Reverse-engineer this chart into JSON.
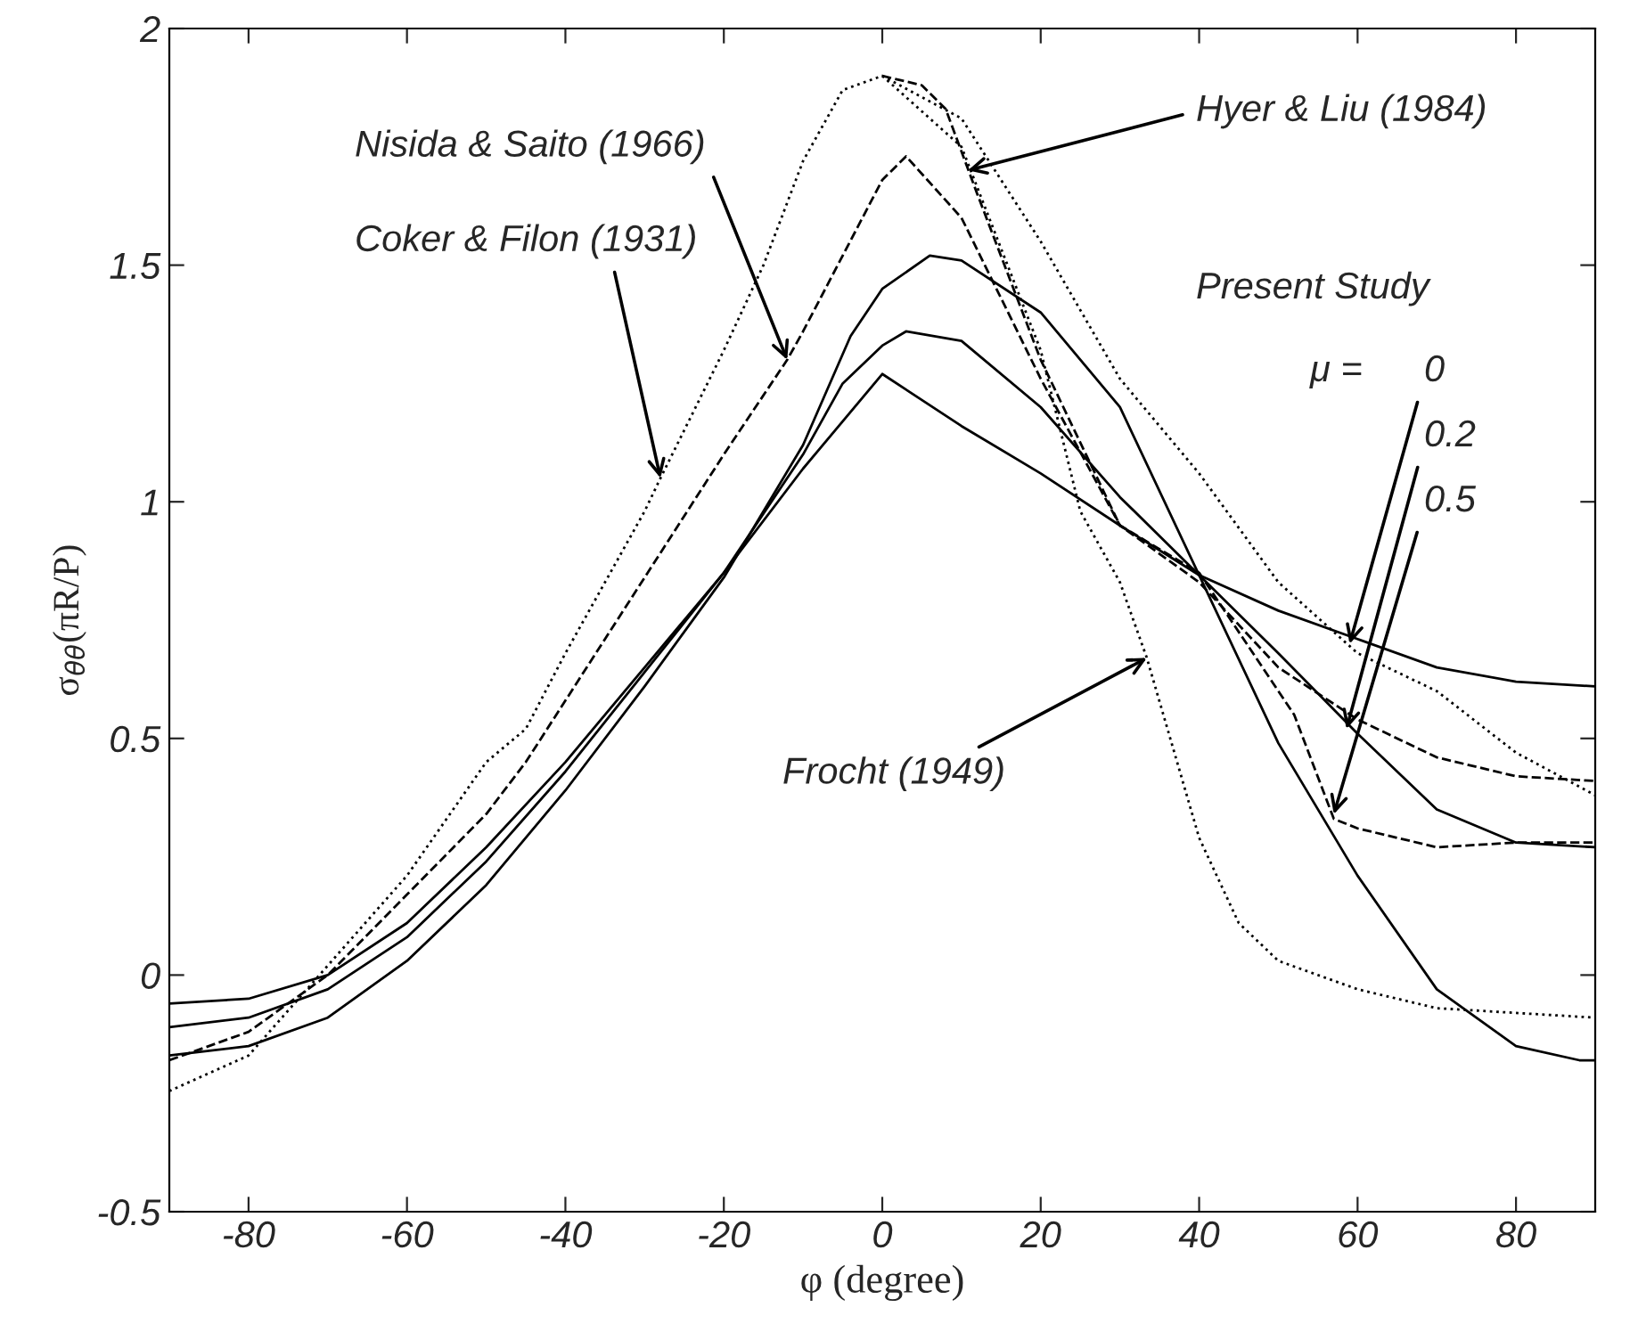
{
  "chart_data": {
    "type": "line",
    "xlabel": "φ (degree)",
    "ylabel": "σ$_{θθ}$(πR/P)",
    "xlim": [
      -90,
      90
    ],
    "ylim": [
      -0.5,
      2
    ],
    "xticks": [
      {
        "value": -80,
        "label": "-80"
      },
      {
        "value": -60,
        "label": "-60"
      },
      {
        "value": -40,
        "label": "-40"
      },
      {
        "value": -20,
        "label": "-20"
      },
      0,
      20,
      40,
      60,
      80
    ],
    "yticks": [
      {
        "value": -0.5,
        "label": "-0.5"
      },
      0,
      0.5,
      1,
      1.5,
      2
    ],
    "grid": false,
    "marker": "none",
    "series": [
      {
        "color": "#000000",
        "line_style": "solid",
        "x": [
          -90,
          -80,
          -70,
          -60,
          -50,
          -40,
          -30,
          -20,
          -10,
          0,
          10,
          20,
          30,
          40,
          50,
          60,
          70,
          80,
          90
        ],
        "values": [
          -0.06,
          -0.05,
          0.0,
          0.11,
          0.27,
          0.45,
          0.65,
          0.85,
          1.07,
          1.27,
          1.16,
          1.06,
          0.95,
          0.845,
          0.77,
          0.71,
          0.65,
          0.62,
          0.61
        ]
      },
      {
        "color": "#000000",
        "line_style": "solid",
        "x": [
          -90,
          -80,
          -70,
          -60,
          -50,
          -40,
          -30,
          -20,
          -10,
          -5,
          0,
          3,
          10,
          20,
          30,
          40,
          50,
          60,
          70,
          80,
          90
        ],
        "values": [
          -0.11,
          -0.09,
          -0.03,
          0.08,
          0.24,
          0.43,
          0.64,
          0.85,
          1.1,
          1.25,
          1.33,
          1.36,
          1.34,
          1.2,
          1.01,
          0.845,
          0.68,
          0.51,
          0.35,
          0.28,
          0.27
        ]
      },
      {
        "color": "#000000",
        "line_style": "solid",
        "x": [
          -90,
          -80,
          -70,
          -60,
          -50,
          -40,
          -30,
          -20,
          -10,
          -4,
          0,
          6,
          10,
          20,
          30,
          40,
          50,
          60,
          70,
          80,
          88,
          90
        ],
        "values": [
          -0.17,
          -0.15,
          -0.09,
          0.03,
          0.19,
          0.39,
          0.61,
          0.84,
          1.12,
          1.35,
          1.45,
          1.52,
          1.51,
          1.4,
          1.2,
          0.845,
          0.49,
          0.21,
          -0.03,
          -0.15,
          -0.18,
          -0.18
        ]
      },
      {
        "color": "#000000",
        "line_style": "dashed",
        "x": [
          -90,
          -80,
          -70,
          -60,
          -50,
          -45,
          -40,
          -30,
          -20,
          -12,
          -10,
          0,
          3,
          10,
          20,
          30,
          40,
          50,
          60,
          70,
          80,
          90
        ],
        "values": [
          -0.18,
          -0.12,
          0.0,
          0.17,
          0.34,
          0.45,
          0.58,
          0.84,
          1.1,
          1.3,
          1.36,
          1.68,
          1.73,
          1.6,
          1.26,
          0.95,
          0.83,
          0.65,
          0.54,
          0.46,
          0.42,
          0.41
        ]
      },
      {
        "color": "#000000",
        "line_style": "dotted",
        "x": [
          -90,
          -80,
          -70,
          -60,
          -50,
          -45,
          -40,
          -30,
          -28,
          -20,
          -15,
          -10,
          -5,
          0,
          10,
          20,
          30,
          40,
          50,
          60,
          70,
          80,
          90
        ],
        "values": [
          -0.245,
          -0.17,
          0.02,
          0.21,
          0.45,
          0.52,
          0.68,
          0.98,
          1.05,
          1.32,
          1.5,
          1.72,
          1.87,
          1.9,
          1.81,
          1.55,
          1.26,
          1.06,
          0.83,
          0.68,
          0.6,
          0.47,
          0.38
        ]
      },
      {
        "color": "#000000",
        "line_style": "dotted",
        "x": [
          0,
          10,
          20,
          25,
          30,
          33.4,
          40,
          45,
          50,
          60,
          70,
          80,
          90
        ],
        "values": [
          1.9,
          1.75,
          1.32,
          0.98,
          0.83,
          0.67,
          0.29,
          0.11,
          0.03,
          -0.03,
          -0.07,
          -0.08,
          -0.09
        ]
      },
      {
        "color": "#000000",
        "line_style": "dashed",
        "x": [
          0,
          5,
          8,
          12,
          20,
          30,
          40,
          50,
          52,
          57,
          60,
          70,
          80,
          90
        ],
        "values": [
          1.9,
          1.88,
          1.83,
          1.65,
          1.3,
          0.95,
          0.85,
          0.6,
          0.55,
          0.33,
          0.31,
          0.27,
          0.28,
          0.28
        ]
      }
    ],
    "annotations": [
      {
        "text": "Hyer & Liu (1984)",
        "x": 10.8,
        "y": 1.7
      },
      {
        "text": "Nisida & Saito (1966)",
        "x": -12,
        "y": 1.3
      },
      {
        "text": "Coker & Filon (1931)",
        "x": -28,
        "y": 1.05
      },
      {
        "text": "Frocht (1949)",
        "x": 33.4,
        "y": 0.67
      },
      "Present Study",
      "μ =",
      {
        "text": "0",
        "x": 59,
        "y": 0.7
      },
      {
        "text": "0.2",
        "x": 58.6,
        "y": 0.52
      },
      {
        "text": "0.5",
        "x": 57,
        "y": 0.34
      }
    ]
  }
}
